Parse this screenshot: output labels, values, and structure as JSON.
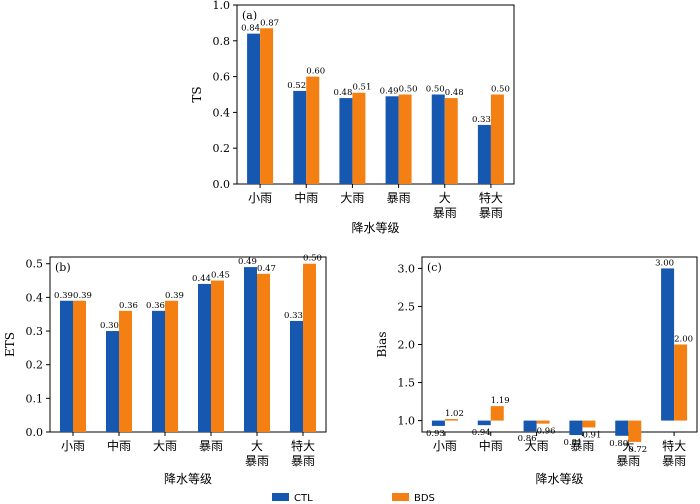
{
  "colors": {
    "ctl": "#1657b0",
    "bds": "#f47f12"
  },
  "legend": [
    {
      "key": "ctl",
      "label": "CTL"
    },
    {
      "key": "bds",
      "label": "BDS"
    }
  ],
  "chart_data": [
    {
      "panel": "(a)",
      "type": "bar",
      "ylabel": "TS",
      "xlabel": "降水等级",
      "categories": [
        [
          "小雨"
        ],
        [
          "中雨"
        ],
        [
          "大雨"
        ],
        [
          "暴雨"
        ],
        [
          "大",
          "暴雨"
        ],
        [
          "特大",
          "暴雨"
        ]
      ],
      "ylim": [
        0.0,
        1.0
      ],
      "yticks": [
        "0.0",
        "0.2",
        "0.4",
        "0.6",
        "0.8",
        "1.0"
      ],
      "series": [
        {
          "name": "CTL",
          "key": "ctl",
          "values": [
            0.84,
            0.52,
            0.48,
            0.49,
            0.5,
            0.33
          ],
          "labels": [
            "0.84",
            "0.52",
            "0.48",
            "0.49",
            "0.50",
            "0.33"
          ]
        },
        {
          "name": "BDS",
          "key": "bds",
          "values": [
            0.87,
            0.6,
            0.51,
            0.5,
            0.48,
            0.5
          ],
          "labels": [
            "0.87",
            "0.60",
            "0.51",
            "0.50",
            "0.48",
            "0.50"
          ]
        }
      ]
    },
    {
      "panel": "(b)",
      "type": "bar",
      "ylabel": "ETS",
      "xlabel": "降水等级",
      "categories": [
        [
          "小雨"
        ],
        [
          "中雨"
        ],
        [
          "大雨"
        ],
        [
          "暴雨"
        ],
        [
          "大",
          "暴雨"
        ],
        [
          "特大",
          "暴雨"
        ]
      ],
      "ylim": [
        0.0,
        0.52
      ],
      "yticks": [
        "0.0",
        "0.1",
        "0.2",
        "0.3",
        "0.4",
        "0.5"
      ],
      "series": [
        {
          "name": "CTL",
          "key": "ctl",
          "values": [
            0.39,
            0.3,
            0.36,
            0.44,
            0.49,
            0.33
          ],
          "labels": [
            "0.39",
            "0.30",
            "0.36",
            "0.44",
            "0.49",
            "0.33"
          ]
        },
        {
          "name": "BDS",
          "key": "bds",
          "values": [
            0.39,
            0.36,
            0.39,
            0.45,
            0.47,
            0.5
          ],
          "labels": [
            "0.39",
            "0.36",
            "0.39",
            "0.45",
            "0.47",
            "0.50"
          ]
        }
      ]
    },
    {
      "panel": "(c)",
      "type": "bar",
      "ylabel": "Bias",
      "xlabel": "降水等级",
      "baseline": 1.0,
      "categories": [
        [
          "小雨"
        ],
        [
          "中雨"
        ],
        [
          "大雨"
        ],
        [
          "暴雨"
        ],
        [
          "大",
          "暴雨"
        ],
        [
          "特大",
          "暴雨"
        ]
      ],
      "ylim": [
        0.85,
        3.15
      ],
      "yticks": [
        "1.0",
        "1.5",
        "2.0",
        "2.5",
        "3.0"
      ],
      "series": [
        {
          "name": "CTL",
          "key": "ctl",
          "values": [
            0.93,
            0.94,
            0.86,
            0.81,
            0.8,
            3.0
          ],
          "labels": [
            "0.93",
            "0.94",
            "0.86",
            "0.81",
            "0.80",
            "3.00"
          ]
        },
        {
          "name": "BDS",
          "key": "bds",
          "values": [
            1.02,
            1.19,
            0.96,
            0.91,
            0.72,
            2.0
          ],
          "labels": [
            "1.02",
            "1.19",
            "0.96",
            "0.91",
            "0.72",
            "2.00"
          ]
        }
      ]
    }
  ]
}
